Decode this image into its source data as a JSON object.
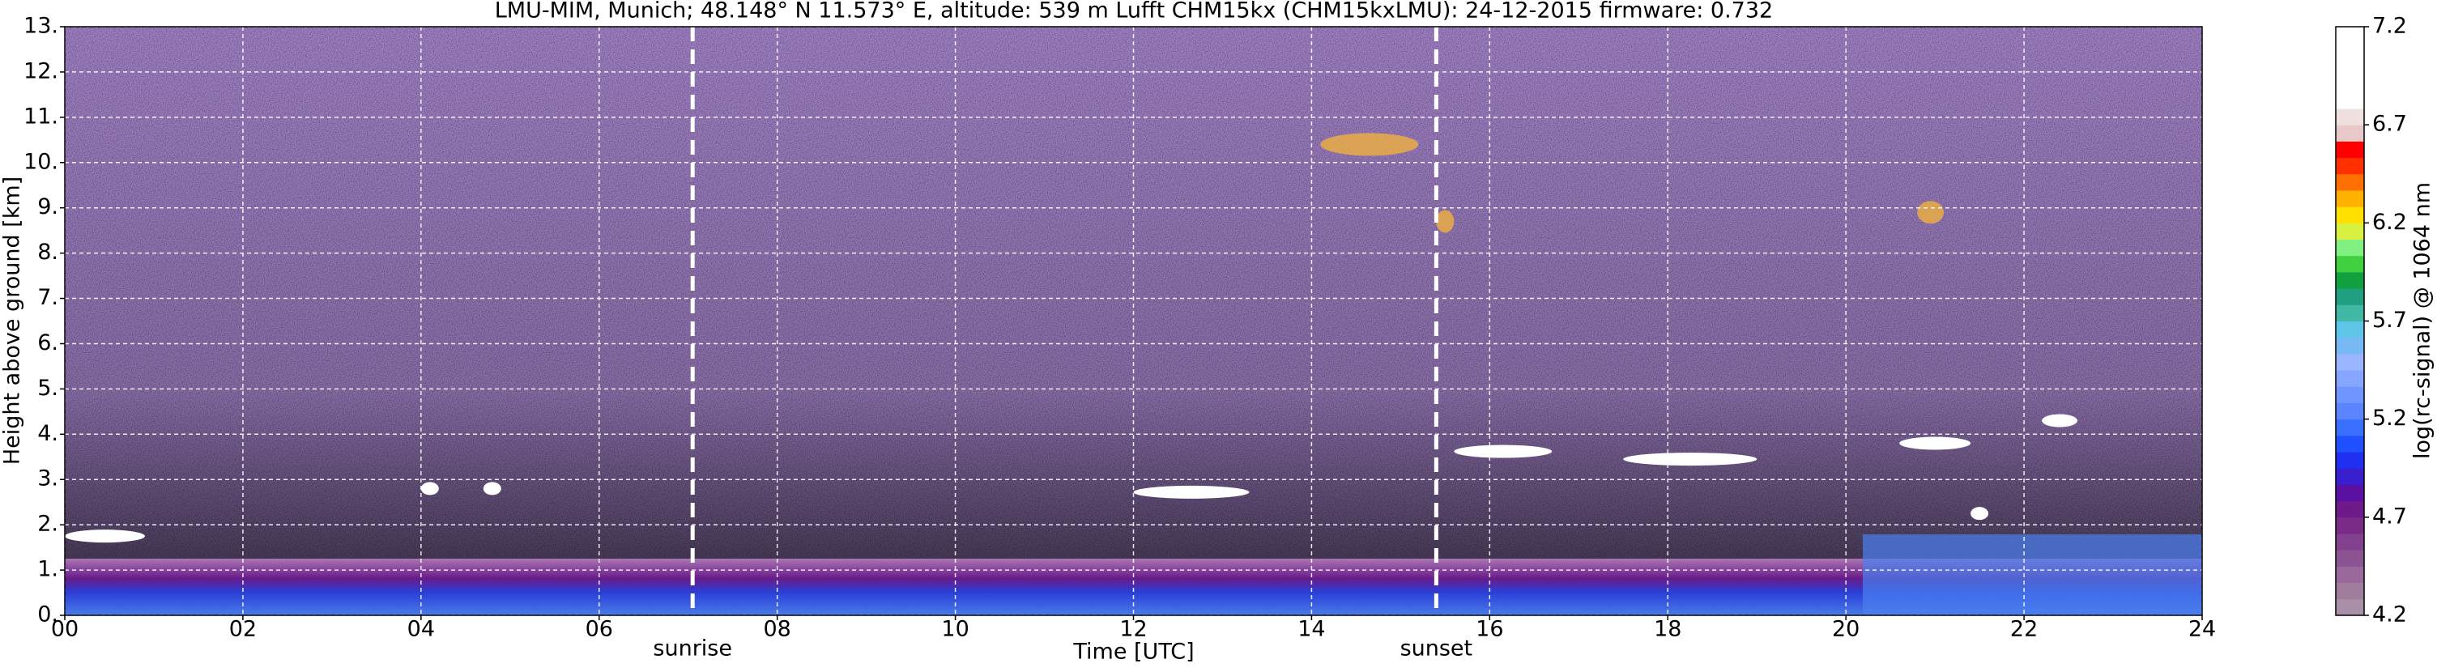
{
  "chart_data": {
    "type": "heatmap",
    "title": "LMU-MIM, Munich; 48.148° N 11.573° E, altitude: 539 m    Lufft CHM15kx (CHM15kxLMU): 24-12-2015    firmware: 0.732",
    "xlabel": "Time [UTC]",
    "ylabel": "Height above ground [km]",
    "xlim": [
      0,
      24
    ],
    "xticks": [
      {
        "value": 0,
        "label": "00"
      },
      {
        "value": 2,
        "label": "02"
      },
      {
        "value": 4,
        "label": "04"
      },
      {
        "value": 6,
        "label": "06"
      },
      {
        "value": 8,
        "label": "08"
      },
      {
        "value": 10,
        "label": "10"
      },
      {
        "value": 12,
        "label": "12"
      },
      {
        "value": 14,
        "label": "14"
      },
      {
        "value": 16,
        "label": "16"
      },
      {
        "value": 18,
        "label": "18"
      },
      {
        "value": 20,
        "label": "20"
      },
      {
        "value": 22,
        "label": "22"
      },
      {
        "value": 24,
        "label": "24"
      }
    ],
    "ylim": [
      0,
      13
    ],
    "yticks": [
      {
        "value": 0,
        "label": "0."
      },
      {
        "value": 1,
        "label": "1."
      },
      {
        "value": 2,
        "label": "2."
      },
      {
        "value": 3,
        "label": "3."
      },
      {
        "value": 4,
        "label": "4."
      },
      {
        "value": 5,
        "label": "5."
      },
      {
        "value": 6,
        "label": "6."
      },
      {
        "value": 7,
        "label": "7."
      },
      {
        "value": 8,
        "label": "8."
      },
      {
        "value": 9,
        "label": "9."
      },
      {
        "value": 10,
        "label": "10."
      },
      {
        "value": 11,
        "label": "11."
      },
      {
        "value": 12,
        "label": "12."
      },
      {
        "value": 13,
        "label": "13."
      }
    ],
    "grid": true,
    "annotations": [
      {
        "text": "sunrise",
        "x": 7.05
      },
      {
        "text": "sunset",
        "x": 15.4
      }
    ],
    "clouds": [
      {
        "start": 0,
        "end": 0.9,
        "base": 1.75
      },
      {
        "start": 4.0,
        "end": 4.2,
        "base": 2.8
      },
      {
        "start": 4.7,
        "end": 4.9,
        "base": 2.8
      },
      {
        "start": 12.0,
        "end": 13.3,
        "base": 2.72
      },
      {
        "start": 15.6,
        "end": 16.7,
        "base": 3.62
      },
      {
        "start": 17.5,
        "end": 19.0,
        "base": 3.45
      },
      {
        "start": 20.6,
        "end": 21.4,
        "base": 3.8
      },
      {
        "start": 21.4,
        "end": 21.6,
        "base": 2.25
      },
      {
        "start": 22.2,
        "end": 22.6,
        "base": 4.3
      },
      {
        "start": 14.1,
        "end": 15.2,
        "base": 10.4
      },
      {
        "start": 15.4,
        "end": 15.6,
        "base": 8.7
      },
      {
        "start": 20.8,
        "end": 21.1,
        "base": 8.9
      }
    ],
    "colorbar": {
      "label": "log(rc-signal) @ 1064 nm",
      "clim": [
        4.2,
        7.2
      ],
      "ticks": [
        4.2,
        4.7,
        5.2,
        5.7,
        6.2,
        6.7,
        7.2
      ],
      "colors": [
        "#a98fa8",
        "#a07d9c",
        "#98699a",
        "#8d5493",
        "#83408c",
        "#7a2b88",
        "#6e1a8a",
        "#5a10a0",
        "#3a1fcf",
        "#2030f0",
        "#2050ff",
        "#3a70ff",
        "#5a85ff",
        "#6f95ff",
        "#85a5ff",
        "#9ab5ff",
        "#77b9f5",
        "#5fc5e8",
        "#40b8a5",
        "#20a080",
        "#10a040",
        "#40d040",
        "#80f080",
        "#d8f040",
        "#ffe000",
        "#ffb000",
        "#ff7000",
        "#ff3000",
        "#ff0000",
        "#e8c8c8",
        "#f0e0e0",
        "#ffffff",
        "#ffffff",
        "#ffffff",
        "#ffffff",
        "#ffffff"
      ]
    }
  }
}
